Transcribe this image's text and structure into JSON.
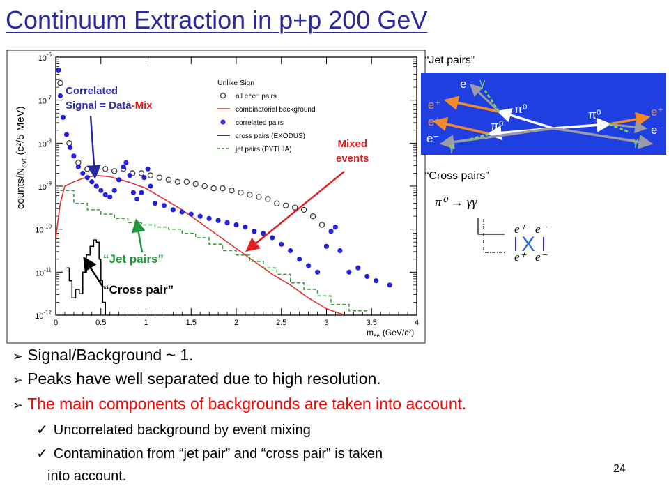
{
  "slide": {
    "title": "Continuum Extraction in p+p 200 GeV",
    "page_number": "24"
  },
  "annotations": {
    "correlated_line1": "Correlated",
    "correlated_line2_a": "Signal = ",
    "correlated_line2_b": "Data",
    "correlated_line2_c": "-",
    "correlated_line2_d": "Mix",
    "mixed_line1": "Mixed",
    "mixed_line2": "events",
    "jet_pairs": "“Jet pairs”",
    "cross_pair": "“Cross pair”"
  },
  "jet_diagram": {
    "caption": "“Jet pairs”",
    "labels": {
      "e_minus_top": "e⁻",
      "gamma_top": "γ",
      "e_plus_1": "e⁺",
      "e_plus_2": "e⁺",
      "e_minus_left": "e⁻",
      "gamma_left": "γ",
      "pi0_a": "π⁰",
      "pi0_b": "π⁰",
      "pi0_c": "π⁰",
      "e_plus_right": "e⁺",
      "e_minus_right": "e⁻",
      "gamma_right": "γ"
    },
    "colors": {
      "background": "#1f3fe0",
      "electron": "#f08a2a",
      "gamma": "#7ad060",
      "pion": "#ffffff",
      "jet": "#9a9aa8"
    }
  },
  "cross_diagram": {
    "caption": "“Cross pairs”",
    "formula": "π⁰ → γγ",
    "ep_top": "e⁺",
    "em_top": "e⁻",
    "cross_mark": "X",
    "ep_bottom": "e⁺",
    "em_bottom": "e⁻"
  },
  "bullets": [
    {
      "text": "Signal/Background  ~ 1.",
      "color": "#000000"
    },
    {
      "text": "Peaks have well separated due to high resolution.",
      "color": "#000000"
    },
    {
      "text": "The main components of backgrounds are taken into account.",
      "color": "#ff0000"
    }
  ],
  "sub_bullets": {
    "check": "✓",
    "item1": "Uncorrelated background by event mixing",
    "item2_line1": "Contamination from “jet pair” and “cross pair” is taken",
    "item2_line2": "into account."
  },
  "chart_data": {
    "type": "line",
    "xlabel": "m",
    "xlabel_sub": "ee",
    "xlabel_unit": "(GeV/c²)",
    "ylabel": "counts/N",
    "ylabel_sub": "evt",
    "ylabel_unit": "(c²/5 MeV)",
    "xlim": [
      0,
      4
    ],
    "ylim_log10": [
      -12,
      -6
    ],
    "log_y": true,
    "x_ticks": [
      "0",
      "0.5",
      "1",
      "1.5",
      "2",
      "2.5",
      "3",
      "3.5",
      "4"
    ],
    "y_ticks": [
      {
        "exp": -12,
        "label": "10",
        "sup": "-12"
      },
      {
        "exp": -11,
        "label": "10",
        "sup": "-11"
      },
      {
        "exp": -10,
        "label": "10",
        "sup": "-10"
      },
      {
        "exp": -9,
        "label": "10",
        "sup": "-9"
      },
      {
        "exp": -8,
        "label": "10",
        "sup": "-8"
      },
      {
        "exp": -7,
        "label": "10",
        "sup": "-7"
      },
      {
        "exp": -6,
        "label": "10",
        "sup": "-6"
      }
    ],
    "legend_title": "Unlike Sign",
    "legend_position": "top-right",
    "series": [
      {
        "name": "all e⁺e⁻ pairs",
        "style": "open-circle",
        "color": "#333333",
        "points": [
          [
            0.05,
            -6.6
          ],
          [
            0.15,
            -8.0
          ],
          [
            0.25,
            -8.45
          ],
          [
            0.35,
            -8.6
          ],
          [
            0.45,
            -8.6
          ],
          [
            0.55,
            -8.6
          ],
          [
            0.65,
            -8.65
          ],
          [
            0.75,
            -8.6
          ],
          [
            0.85,
            -8.7
          ],
          [
            0.95,
            -8.7
          ],
          [
            1.05,
            -8.75
          ],
          [
            1.15,
            -8.8
          ],
          [
            1.25,
            -8.85
          ],
          [
            1.35,
            -8.9
          ],
          [
            1.45,
            -8.9
          ],
          [
            1.55,
            -8.95
          ],
          [
            1.65,
            -9.0
          ],
          [
            1.75,
            -9.05
          ],
          [
            1.85,
            -9.05
          ],
          [
            1.95,
            -9.1
          ],
          [
            2.05,
            -9.15
          ],
          [
            2.15,
            -9.2
          ],
          [
            2.25,
            -9.25
          ],
          [
            2.35,
            -9.3
          ],
          [
            2.45,
            -9.4
          ],
          [
            2.55,
            -9.45
          ],
          [
            2.65,
            -9.5
          ],
          [
            2.75,
            -9.55
          ],
          [
            2.85,
            -9.7
          ],
          [
            2.95,
            -9.9
          ]
        ]
      },
      {
        "name": "combinatorial background",
        "style": "line",
        "color": "#e03030",
        "points": [
          [
            0.0,
            -10.2
          ],
          [
            0.05,
            -9.4
          ],
          [
            0.1,
            -9.0
          ],
          [
            0.2,
            -8.9
          ],
          [
            0.3,
            -8.82
          ],
          [
            0.45,
            -8.75
          ],
          [
            0.6,
            -8.78
          ],
          [
            0.8,
            -8.9
          ],
          [
            1.0,
            -9.05
          ],
          [
            1.2,
            -9.3
          ],
          [
            1.4,
            -9.55
          ],
          [
            1.6,
            -9.85
          ],
          [
            1.8,
            -10.15
          ],
          [
            2.0,
            -10.45
          ],
          [
            2.2,
            -10.75
          ],
          [
            2.4,
            -11.05
          ],
          [
            2.6,
            -11.3
          ],
          [
            2.8,
            -11.6
          ],
          [
            3.0,
            -11.85
          ],
          [
            3.2,
            -12.0
          ]
        ]
      },
      {
        "name": "correlated pairs",
        "style": "filled-circle",
        "color": "#2222dd",
        "points": [
          [
            0.03,
            -6.3
          ],
          [
            0.05,
            -6.9
          ],
          [
            0.08,
            -7.4
          ],
          [
            0.12,
            -7.8
          ],
          [
            0.16,
            -8.1
          ],
          [
            0.2,
            -8.3
          ],
          [
            0.25,
            -8.55
          ],
          [
            0.3,
            -8.7
          ],
          [
            0.35,
            -8.8
          ],
          [
            0.4,
            -8.9
          ],
          [
            0.45,
            -9.0
          ],
          [
            0.5,
            -9.1
          ],
          [
            0.55,
            -9.2
          ],
          [
            0.6,
            -9.25
          ],
          [
            0.65,
            -9.1
          ],
          [
            0.7,
            -8.85
          ],
          [
            0.75,
            -8.55
          ],
          [
            0.78,
            -8.45
          ],
          [
            0.82,
            -8.75
          ],
          [
            0.86,
            -9.15
          ],
          [
            0.9,
            -9.3
          ],
          [
            0.95,
            -9.15
          ],
          [
            0.98,
            -8.8
          ],
          [
            1.02,
            -8.6
          ],
          [
            1.05,
            -9.0
          ],
          [
            1.1,
            -9.4
          ],
          [
            1.2,
            -9.45
          ],
          [
            1.3,
            -9.55
          ],
          [
            1.4,
            -9.6
          ],
          [
            1.5,
            -9.65
          ],
          [
            1.6,
            -9.7
          ],
          [
            1.7,
            -9.75
          ],
          [
            1.8,
            -9.8
          ],
          [
            1.9,
            -9.85
          ],
          [
            2.0,
            -9.9
          ],
          [
            2.1,
            -9.95
          ],
          [
            2.2,
            -10.05
          ],
          [
            2.3,
            -10.1
          ],
          [
            2.4,
            -10.2
          ],
          [
            2.5,
            -10.35
          ],
          [
            2.6,
            -10.5
          ],
          [
            2.7,
            -10.7
          ],
          [
            2.8,
            -10.85
          ],
          [
            2.9,
            -11.0
          ],
          [
            3.0,
            -10.4
          ],
          [
            3.05,
            -10.05
          ],
          [
            3.1,
            -9.95
          ],
          [
            3.15,
            -10.5
          ],
          [
            3.25,
            -11.0
          ],
          [
            3.35,
            -10.9
          ],
          [
            3.45,
            -11.1
          ],
          [
            3.55,
            -11.2
          ],
          [
            3.7,
            -11.3
          ]
        ]
      },
      {
        "name": "cross pairs (EXODUS)",
        "style": "step",
        "color": "#000000",
        "points": [
          [
            0.12,
            -10.9
          ],
          [
            0.15,
            -11.2
          ],
          [
            0.18,
            -11.6
          ],
          [
            0.22,
            -11.4
          ],
          [
            0.26,
            -11.5
          ],
          [
            0.3,
            -11.0
          ],
          [
            0.34,
            -10.6
          ],
          [
            0.38,
            -10.4
          ],
          [
            0.42,
            -10.25
          ],
          [
            0.45,
            -10.3
          ],
          [
            0.48,
            -10.7
          ],
          [
            0.5,
            -11.2
          ],
          [
            0.52,
            -11.7
          ],
          [
            0.55,
            -12.0
          ]
        ]
      },
      {
        "name": "jet pairs (PYTHIA)",
        "style": "dashed-step",
        "color": "#30a030",
        "points": [
          [
            0.05,
            -9.1
          ],
          [
            0.2,
            -9.4
          ],
          [
            0.35,
            -9.55
          ],
          [
            0.5,
            -9.65
          ],
          [
            0.65,
            -9.75
          ],
          [
            0.8,
            -9.85
          ],
          [
            0.95,
            -9.9
          ],
          [
            1.1,
            -9.95
          ],
          [
            1.25,
            -10.0
          ],
          [
            1.4,
            -10.1
          ],
          [
            1.55,
            -10.2
          ],
          [
            1.7,
            -10.35
          ],
          [
            1.85,
            -10.5
          ],
          [
            2.0,
            -10.6
          ],
          [
            2.15,
            -10.75
          ],
          [
            2.3,
            -10.9
          ],
          [
            2.45,
            -11.05
          ],
          [
            2.6,
            -11.25
          ],
          [
            2.75,
            -11.4
          ],
          [
            2.9,
            -11.55
          ],
          [
            3.05,
            -11.75
          ],
          [
            3.25,
            -11.9
          ],
          [
            3.45,
            -11.95
          ]
        ]
      }
    ]
  }
}
